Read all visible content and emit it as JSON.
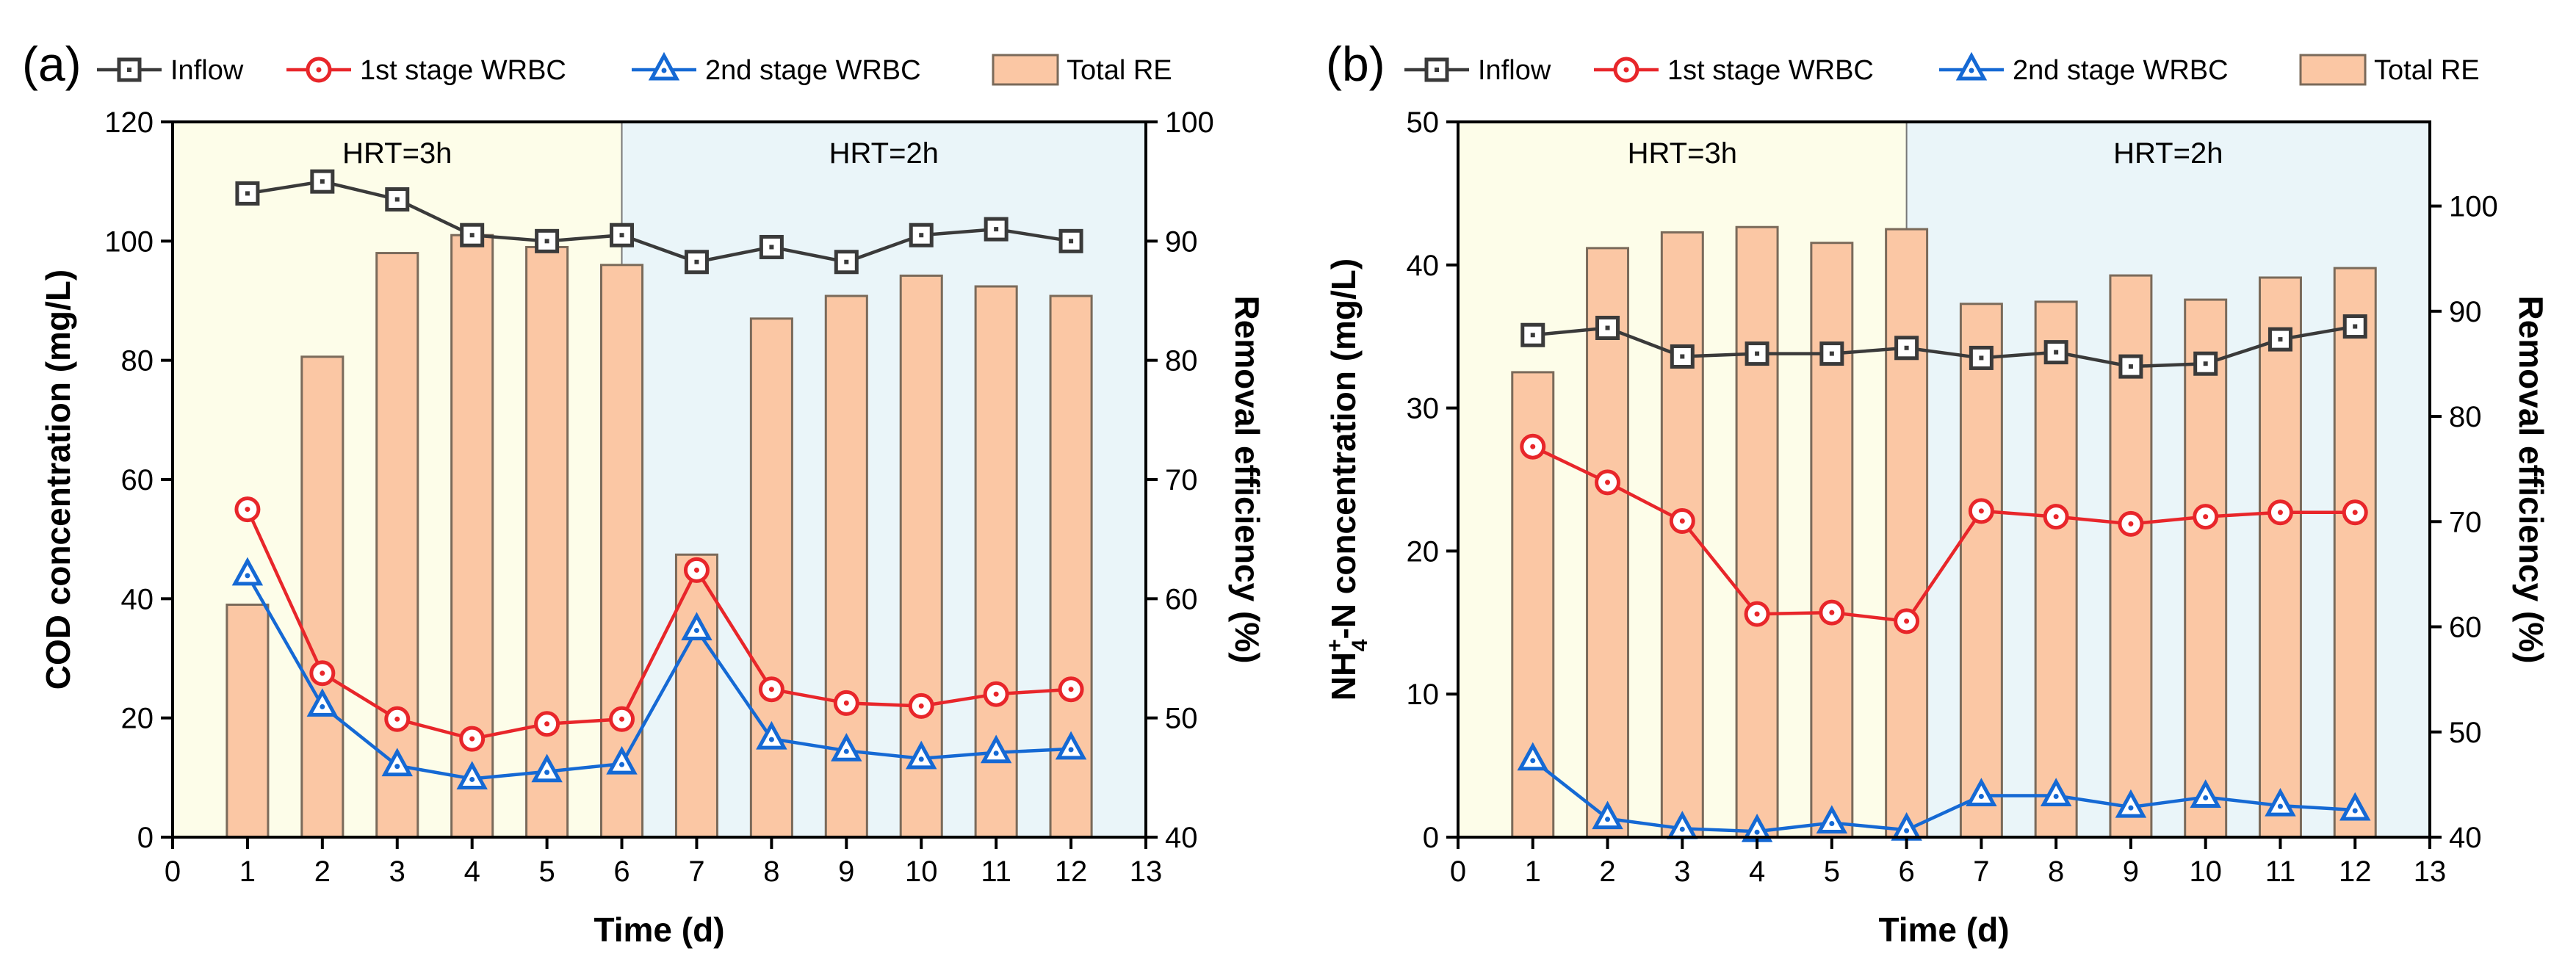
{
  "chart_data": [
    {
      "type": "bar+line",
      "panel_label": "(a)",
      "title": "",
      "xlabel": "Time (d)",
      "ylabel": "COD concentration (mg/L)",
      "y2label": "Removal efficiency (%)",
      "xlim": [
        0,
        13
      ],
      "ylim": [
        0,
        120
      ],
      "y2lim": [
        40,
        100
      ],
      "xticks": [
        "0",
        "1",
        "2",
        "3",
        "4",
        "5",
        "6",
        "7",
        "8",
        "9",
        "10",
        "11",
        "12",
        "13"
      ],
      "yticks": [
        "0",
        "20",
        "40",
        "60",
        "80",
        "100",
        "120"
      ],
      "y2ticks": [
        "40",
        "50",
        "60",
        "70",
        "80",
        "90",
        "100"
      ],
      "x": [
        1,
        2,
        3,
        4,
        5,
        6,
        7,
        8,
        9,
        10,
        11,
        12
      ],
      "regions": [
        {
          "label": "HRT=3h",
          "from": 0,
          "to": 6,
          "color": "#fdfde9"
        },
        {
          "label": "HRT=2h",
          "from": 6,
          "to": 13,
          "color": "#eaf5f9"
        }
      ],
      "bars": {
        "name": "Total RE",
        "axis": "right",
        "color": "#fbc7a4",
        "values": [
          59.5,
          80.3,
          89.0,
          90.5,
          89.5,
          88.0,
          63.7,
          83.5,
          85.4,
          87.1,
          86.2,
          85.4
        ]
      },
      "series": [
        {
          "name": "Inflow",
          "marker": "square",
          "color": "#3a3a3a",
          "values": [
            108,
            110,
            107,
            101,
            100,
            101,
            96.5,
            99,
            96.5,
            101,
            102,
            100
          ]
        },
        {
          "name": "1st stage WRBC",
          "marker": "circle",
          "color": "#e8262a",
          "values": [
            55,
            27.5,
            19.8,
            16.5,
            19,
            19.8,
            44.8,
            24.8,
            22.5,
            22,
            24,
            24.8
          ]
        },
        {
          "name": "2nd stage WRBC",
          "marker": "triangle",
          "color": "#1569d4",
          "values": [
            44,
            22,
            12,
            9.8,
            11,
            12.3,
            34.8,
            16.5,
            14.5,
            13.2,
            14.2,
            14.8
          ]
        }
      ],
      "legend": [
        "Inflow",
        "1st stage WRBC",
        "2nd stage WRBC",
        "Total RE"
      ]
    },
    {
      "type": "bar+line",
      "panel_label": "(b)",
      "title": "",
      "xlabel": "Time (d)",
      "ylabel": "NH4+-N concentration (mg/L)",
      "ylabel_parts": {
        "base": "NH",
        "sup": "+",
        "sub": "4",
        "rest": "-N concentration (mg/L)"
      },
      "y2label": "Removal efficiency (%)",
      "xlim": [
        0,
        13
      ],
      "ylim": [
        0,
        50
      ],
      "y2lim": [
        40,
        108
      ],
      "xticks": [
        "0",
        "1",
        "2",
        "3",
        "4",
        "5",
        "6",
        "7",
        "8",
        "9",
        "10",
        "11",
        "12",
        "13"
      ],
      "yticks": [
        "0",
        "10",
        "20",
        "30",
        "40",
        "50"
      ],
      "y2ticks": [
        "40",
        "50",
        "60",
        "70",
        "80",
        "90",
        "100"
      ],
      "x": [
        1,
        2,
        3,
        4,
        5,
        6,
        7,
        8,
        9,
        10,
        11,
        12
      ],
      "regions": [
        {
          "label": "HRT=3h",
          "from": 0,
          "to": 6,
          "color": "#fdfde9"
        },
        {
          "label": "HRT=2h",
          "from": 6,
          "to": 13,
          "color": "#eaf5f9"
        }
      ],
      "bars": {
        "name": "Total RE",
        "axis": "right",
        "color": "#fbc7a4",
        "values": [
          84.2,
          96.0,
          97.5,
          98.0,
          96.5,
          97.8,
          90.7,
          90.9,
          93.4,
          91.1,
          93.2,
          94.1
        ]
      },
      "series": [
        {
          "name": "Inflow",
          "marker": "square",
          "color": "#3a3a3a",
          "values": [
            35.1,
            35.6,
            33.6,
            33.8,
            33.8,
            34.2,
            33.5,
            33.9,
            32.9,
            33.1,
            34.8,
            35.7
          ]
        },
        {
          "name": "1st stage WRBC",
          "marker": "circle",
          "color": "#e8262a",
          "values": [
            27.3,
            24.8,
            22.1,
            15.6,
            15.7,
            15.1,
            22.8,
            22.4,
            21.9,
            22.4,
            22.7,
            22.7
          ]
        },
        {
          "name": "2nd stage WRBC",
          "marker": "triangle",
          "color": "#1569d4",
          "values": [
            5.4,
            1.3,
            0.6,
            0.4,
            1.0,
            0.5,
            2.9,
            2.9,
            2.1,
            2.8,
            2.2,
            1.9
          ]
        }
      ],
      "legend": [
        "Inflow",
        "1st stage WRBC",
        "2nd stage WRBC",
        "Total RE"
      ]
    }
  ]
}
